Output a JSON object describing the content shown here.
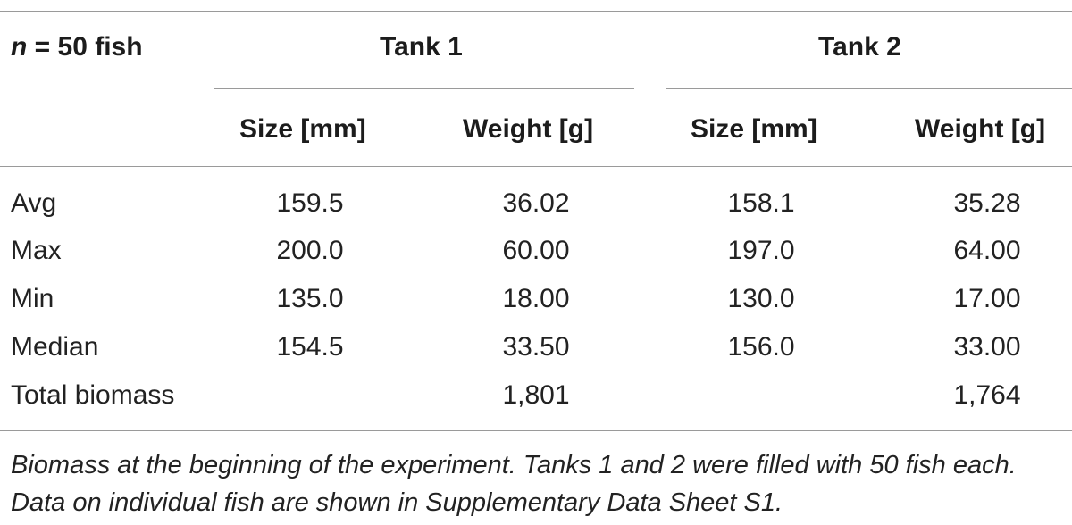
{
  "table": {
    "header": {
      "n_var": "n",
      "n_rest": " = 50 fish",
      "tank1": "Tank 1",
      "tank2": "Tank 2"
    },
    "subheaders": [
      "Size [mm]",
      "Weight [g]",
      "Size [mm]",
      "Weight [g]"
    ],
    "rows": [
      {
        "label": "Avg",
        "values": [
          "159.5",
          "36.02",
          "158.1",
          "35.28"
        ]
      },
      {
        "label": "Max",
        "values": [
          "200.0",
          "60.00",
          "197.0",
          "64.00"
        ]
      },
      {
        "label": "Min",
        "values": [
          "135.0",
          "18.00",
          "130.0",
          "17.00"
        ]
      },
      {
        "label": "Median",
        "values": [
          "154.5",
          "33.50",
          "156.0",
          "33.00"
        ]
      },
      {
        "label": "Total biomass",
        "values": [
          "",
          "1,801",
          "",
          "1,764"
        ]
      }
    ]
  },
  "caption": "Biomass at the beginning of the experiment. Tanks 1 and 2 were filled with 50 fish each. Data on individual fish are shown in Supplementary Data Sheet S1."
}
